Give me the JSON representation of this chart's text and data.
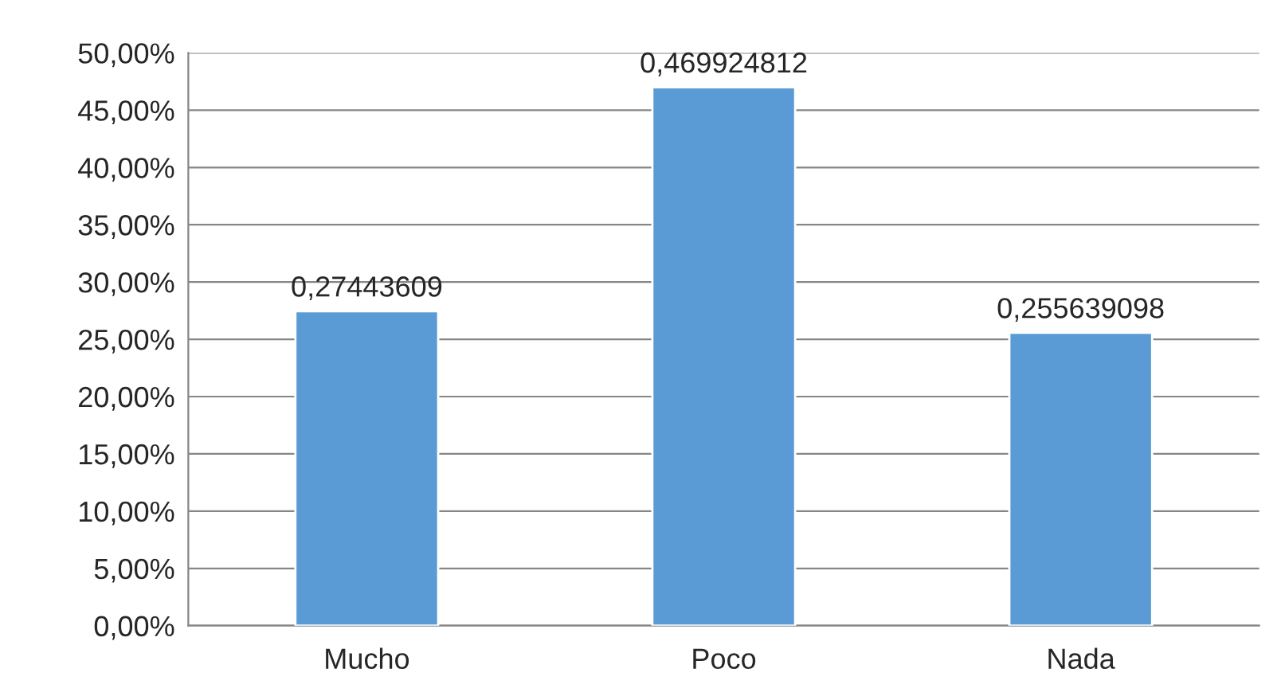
{
  "chart_data": {
    "type": "bar",
    "categories": [
      "Mucho",
      "Poco",
      "Nada"
    ],
    "values": [
      0.27443609,
      0.469924812,
      0.255639098
    ],
    "value_labels": [
      "0,27443609",
      "0,469924812",
      "0,255639098"
    ],
    "color": "#5b9bd5",
    "ylim": [
      0,
      0.5
    ],
    "yticks": [
      {
        "value": 0,
        "label": "0,00%"
      },
      {
        "value": 0.05,
        "label": "5,00%"
      },
      {
        "value": 0.1,
        "label": "10,00%"
      },
      {
        "value": 0.15,
        "label": "15,00%"
      },
      {
        "value": 0.2,
        "label": "20,00%"
      },
      {
        "value": 0.25,
        "label": "25,00%"
      },
      {
        "value": 0.3,
        "label": "30,00%"
      },
      {
        "value": 0.35,
        "label": "35,00%"
      },
      {
        "value": 0.4,
        "label": "40,00%"
      },
      {
        "value": 0.45,
        "label": "45,00%"
      },
      {
        "value": 0.5,
        "label": "50,00%"
      }
    ],
    "grid": "y",
    "legend": false
  }
}
